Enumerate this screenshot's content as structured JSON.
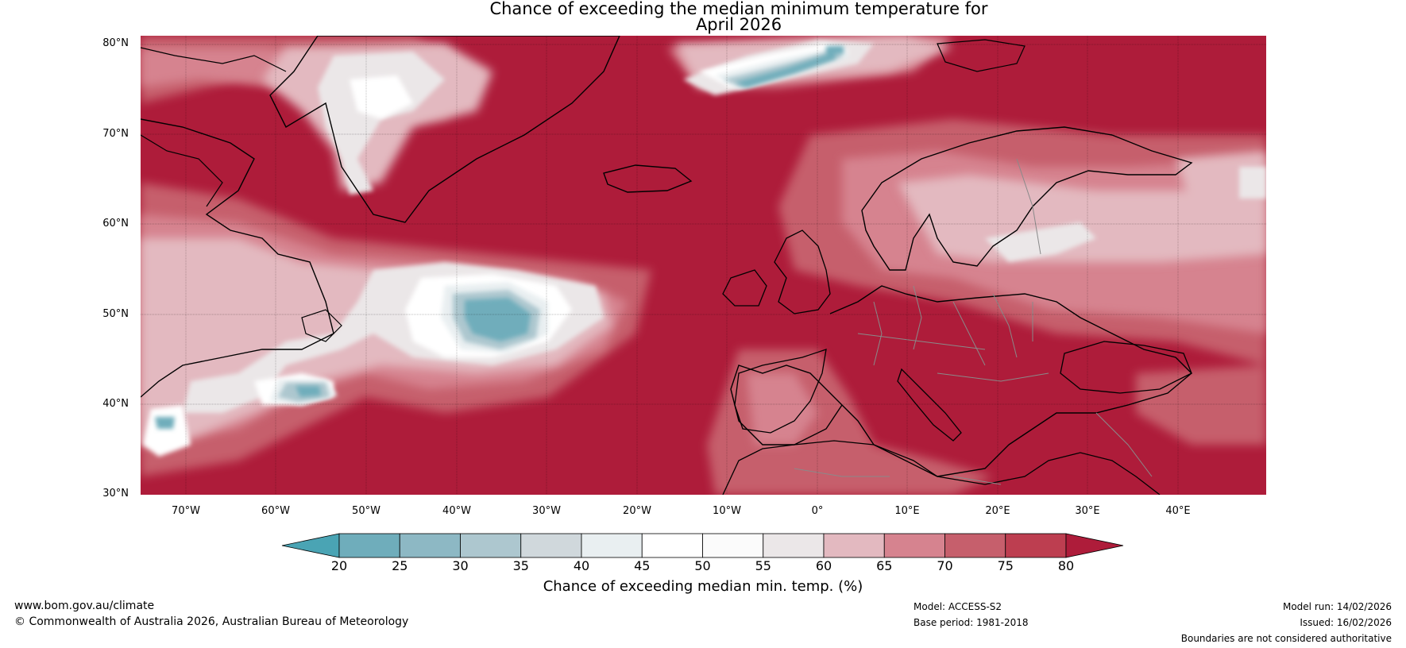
{
  "title_line1": "Chance of exceeding the median minimum temperature for",
  "title_line2": "April 2026",
  "lat_labels": [
    "80°N",
    "70°N",
    "60°N",
    "50°N",
    "40°N",
    "30°N"
  ],
  "lon_labels": [
    "70°W",
    "60°W",
    "50°W",
    "40°W",
    "30°W",
    "20°W",
    "10°W",
    "0°",
    "10°E",
    "20°E",
    "30°E",
    "40°E"
  ],
  "colorbar": {
    "ticks": [
      "20",
      "25",
      "30",
      "35",
      "40",
      "45",
      "50",
      "55",
      "60",
      "65",
      "70",
      "75",
      "80"
    ],
    "title": "Chance of exceeding median min. temp. (%)",
    "colors": [
      "#4aa4b4",
      "#6fadbb",
      "#8db8c4",
      "#adc7cf",
      "#d0d8dc",
      "#e9eff1",
      "#ffffff",
      "#fbfbfb",
      "#ebe7e8",
      "#e3b9c0",
      "#d6838f",
      "#c65f6c",
      "#bd3e50",
      "#ae1c3a"
    ],
    "under_color": "#4aa4b4",
    "over_color": "#ae1c3a"
  },
  "footer": {
    "website": "www.bom.gov.au/climate",
    "copyright": "© Commonwealth of Australia 2026, Australian Bureau of Meteorology",
    "model": "Model: ACCESS-S2",
    "base_period": "Base period: 1981-2018",
    "model_run": "Model run: 14/02/2026",
    "issued": "Issued: 16/02/2026",
    "disclaimer": "Boundaries are not considered authoritative"
  }
}
